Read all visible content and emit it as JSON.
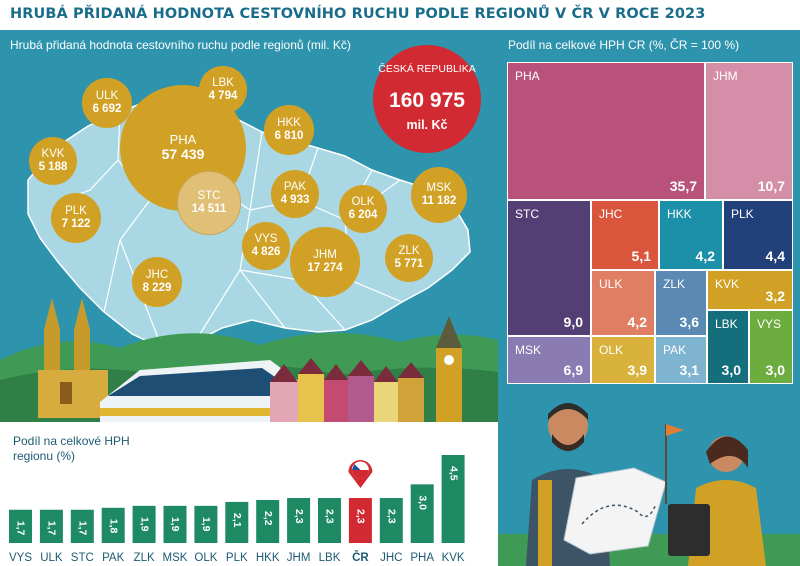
{
  "title": "HRUBÁ PŘIDANÁ HODNOTA CESTOVNÍHO RUCHU PODLE REGIONŮ V ČR V  ROCE 2023",
  "map": {
    "subtitle": "Hrubá přidaná hodnota cestovního ruchu podle regionů (mil. Kč)",
    "total": {
      "name": "ČESKÁ REPUBLIKA",
      "value": "160 975",
      "unit": "mil. Kč"
    }
  },
  "colors": {
    "panel": "#2e93ac",
    "map_land": "#a9d8e4",
    "bubble": "#d1a126",
    "bubble_stc": "#e0c076",
    "accent_red": "#d12a32",
    "bar_green": "#1e8a63",
    "bar_red": "#d12a32"
  },
  "chart_data": [
    {
      "type": "bubble",
      "unit": "mil. Kč",
      "categories": [
        "PHA",
        "STC",
        "JHM",
        "MSK",
        "JHC",
        "PLK",
        "HKK",
        "ULK",
        "OLK",
        "ZLK",
        "KVK",
        "PAK",
        "VYS",
        "LBK"
      ],
      "values": [
        "57 439",
        "14 511",
        "17 274",
        "11 182",
        "8 229",
        "7 122",
        "6 810",
        "6 692",
        "6 204",
        "5 771",
        "5 188",
        "4 933",
        "4 826",
        "4 794"
      ]
    },
    {
      "type": "bar",
      "title": "Podíl na celkové HPH regionu (%)",
      "categories": [
        "VYS",
        "ULK",
        "STC",
        "PAK",
        "ZLK",
        "MSK",
        "OLK",
        "PLK",
        "HKK",
        "JHM",
        "LBK",
        "ČR",
        "JHC",
        "PHA",
        "KVK"
      ],
      "values": [
        1.7,
        1.7,
        1.7,
        1.8,
        1.9,
        1.9,
        1.9,
        2.1,
        2.2,
        2.3,
        2.3,
        2.3,
        2.3,
        3.0,
        4.5
      ],
      "labels": [
        "1,7",
        "1,7",
        "1,7",
        "1,8",
        "1,9",
        "1,9",
        "1,9",
        "2,1",
        "2,2",
        "2,3",
        "2,3",
        "2,3",
        "2,3",
        "3,0",
        "4,5"
      ],
      "highlight": "ČR"
    },
    {
      "type": "treemap",
      "title": "Podíl na celkové HPH CR (%, ČR = 100 %)",
      "categories": [
        "PHA",
        "JHM",
        "STC",
        "JHC",
        "HKK",
        "PLK",
        "MSK",
        "ULK",
        "ZLK",
        "KVK",
        "OLK",
        "PAK",
        "LBK",
        "VYS"
      ],
      "values": [
        35.7,
        10.7,
        9.0,
        5.1,
        4.2,
        4.4,
        6.9,
        4.2,
        3.6,
        3.2,
        3.9,
        3.1,
        3.0,
        3.0
      ],
      "labels": [
        "35,7",
        "10,7",
        "9,0",
        "5,1",
        "4,2",
        "4,4",
        "6,9",
        "4,2",
        "3,6",
        "3,2",
        "3,9",
        "3,1",
        "3,0",
        "3,0"
      ],
      "colors": [
        "#b8527a",
        "#d58ea7",
        "#533f73",
        "#d9553c",
        "#1c8fa9",
        "#213f78",
        "#8a7bb2",
        "#e07e63",
        "#5a8ab4",
        "#d1a126",
        "#d9b23e",
        "#7fb4d0",
        "#156e7c",
        "#6dac3e"
      ]
    }
  ]
}
